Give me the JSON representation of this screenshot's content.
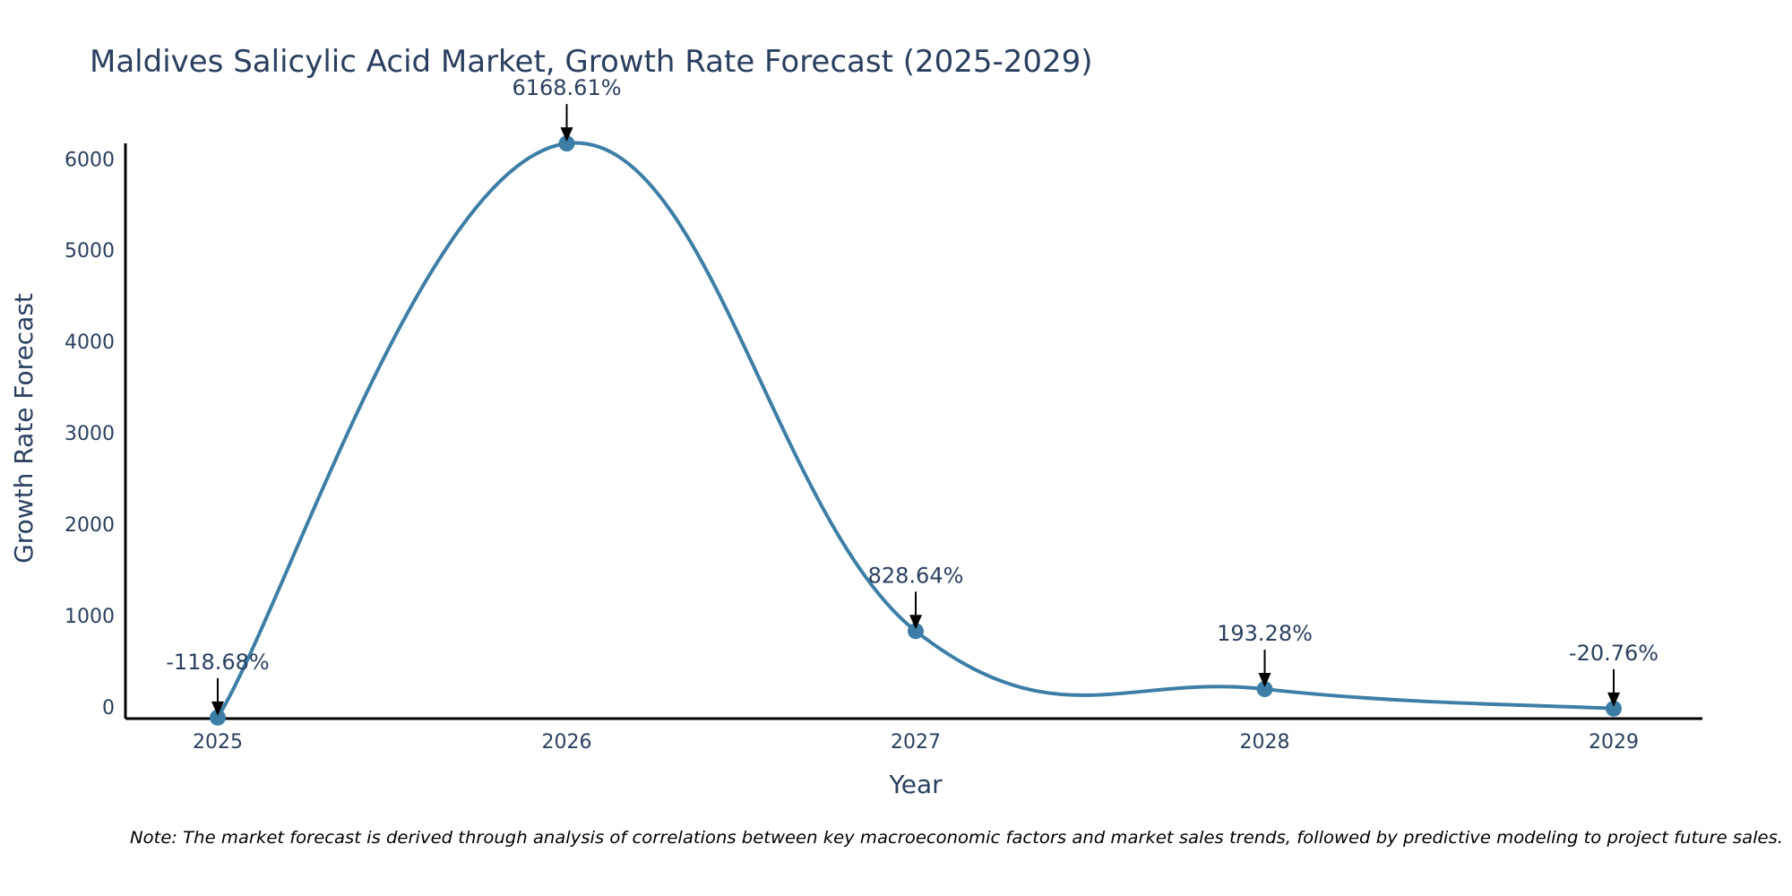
{
  "chart_data": {
    "type": "line",
    "title": "Maldives Salicylic Acid Market, Growth Rate Forecast (2025-2029)",
    "xlabel": "Year",
    "ylabel": "Growth Rate Forecast",
    "categories": [
      "2025",
      "2026",
      "2027",
      "2028",
      "2029"
    ],
    "values": [
      -118.68,
      6168.61,
      828.64,
      193.28,
      -20.76
    ],
    "data_labels": [
      "-118.68%",
      "6168.61%",
      "828.64%",
      "193.28%",
      "-20.76%"
    ],
    "y_ticks": [
      0,
      1000,
      2000,
      3000,
      4000,
      5000,
      6000
    ],
    "ylim": [
      -130,
      6170
    ],
    "grid": false,
    "line_shape": "spline",
    "line_color": "#3d7ea6",
    "axis_color": "#000000",
    "text_color": "#2a3f5f",
    "note": "Note: The market forecast is derived through analysis of correlations between key macroeconomic factors and market sales trends, followed by predictive modeling to project future sales."
  }
}
